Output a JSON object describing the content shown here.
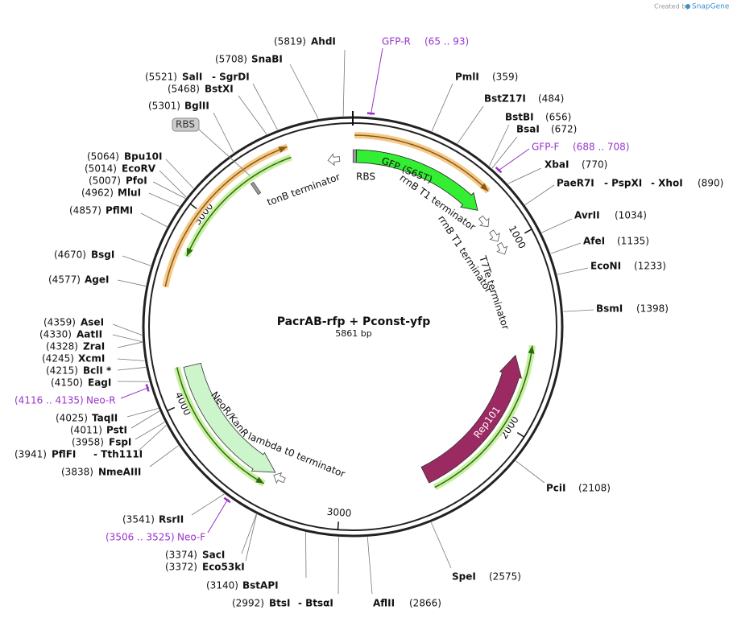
{
  "header": {
    "credit": "Created by",
    "brand": "SnapGene"
  },
  "map": {
    "name": "PacrAB-rfp + Pconst-yfp",
    "length": "5861 bp",
    "ticks": [
      "1000",
      "2000",
      "3000",
      "4000",
      "5000"
    ]
  },
  "sites": [
    {
      "names": [
        "AhdI"
      ],
      "position": "(5819)"
    },
    {
      "names": [
        "SnaBI"
      ],
      "position": "(5708)"
    },
    {
      "names": [
        "PmlI"
      ],
      "position": "(359)"
    },
    {
      "names": [
        "SalI",
        "- SgrDI"
      ],
      "position": "(5521)"
    },
    {
      "names": [
        "BstXI"
      ],
      "position": "(5468)"
    },
    {
      "names": [
        "BstZ17I"
      ],
      "position": "(484)"
    },
    {
      "names": [
        "BglII"
      ],
      "position": "(5301)"
    },
    {
      "names": [
        "BstBI"
      ],
      "position": "(656)"
    },
    {
      "names": [
        "BsaI"
      ],
      "position": "(672)"
    },
    {
      "names": [
        "XbaI"
      ],
      "position": "(770)"
    },
    {
      "names": [
        "PaeR7I",
        "- PspXI",
        "- XhoI"
      ],
      "position": "(890)"
    },
    {
      "names": [
        "AvrII"
      ],
      "position": "(1034)"
    },
    {
      "names": [
        "AfeI"
      ],
      "position": "(1135)"
    },
    {
      "names": [
        "EcoNI"
      ],
      "position": "(1233)"
    },
    {
      "names": [
        "BsmI"
      ],
      "position": "(1398)"
    },
    {
      "names": [
        "PciI"
      ],
      "position": "(2108)"
    },
    {
      "names": [
        "SpeI"
      ],
      "position": "(2575)"
    },
    {
      "names": [
        "AflII"
      ],
      "position": "(2866)"
    },
    {
      "names": [
        "BtsI",
        "- BtsαI"
      ],
      "position": "(2992)"
    },
    {
      "names": [
        "BstAPI"
      ],
      "position": "(3140)"
    },
    {
      "names": [
        "SacI"
      ],
      "position": "(3374)"
    },
    {
      "names": [
        "Eco53kI"
      ],
      "position": "(3372)"
    },
    {
      "names": [
        "RsrII"
      ],
      "position": "(3541)"
    },
    {
      "names": [
        "NmeAIII"
      ],
      "position": "(3838)"
    },
    {
      "names": [
        "PflFI",
        "- Tth111I"
      ],
      "position": "(3941)"
    },
    {
      "names": [
        "FspI"
      ],
      "position": "(3958)"
    },
    {
      "names": [
        "PstI"
      ],
      "position": "(4011)"
    },
    {
      "names": [
        "TaqII"
      ],
      "position": "(4025)"
    },
    {
      "names": [
        "EagI"
      ],
      "position": "(4150)"
    },
    {
      "names": [
        "BclI *"
      ],
      "position": "(4215)"
    },
    {
      "names": [
        "XcmI"
      ],
      "position": "(4245)"
    },
    {
      "names": [
        "ZraI"
      ],
      "position": "(4328)"
    },
    {
      "names": [
        "AatII"
      ],
      "position": "(4330)"
    },
    {
      "names": [
        "AseI"
      ],
      "position": "(4359)"
    },
    {
      "names": [
        "AgeI"
      ],
      "position": "(4577)"
    },
    {
      "names": [
        "BsgI"
      ],
      "position": "(4670)"
    },
    {
      "names": [
        "PflMI"
      ],
      "position": "(4857)"
    },
    {
      "names": [
        "MluI"
      ],
      "position": "(4962)"
    },
    {
      "names": [
        "PfoI"
      ],
      "position": "(5007)"
    },
    {
      "names": [
        "EcoRV"
      ],
      "position": "(5014)"
    },
    {
      "names": [
        "Bpu10I"
      ],
      "position": "(5064)"
    }
  ],
  "primers": [
    {
      "name": "GFP-R",
      "position": "(65 .. 93)"
    },
    {
      "name": "GFP-F",
      "position": "(688 .. 708)"
    },
    {
      "name": "Neo-R",
      "position": "(4116 .. 4135)"
    },
    {
      "name": "Neo-F",
      "position": "(3506 .. 3525)"
    }
  ],
  "features": [
    {
      "label": "GFP (S65T)"
    },
    {
      "label": "RBS"
    },
    {
      "label": "rrnB T1 terminator"
    },
    {
      "label": "rrnB T1 terminator"
    },
    {
      "label": "T7Te terminator"
    },
    {
      "label": "tonB terminator"
    },
    {
      "label": "NeoR/KanR"
    },
    {
      "label": "lambda t0 terminator"
    },
    {
      "label": "Rep101"
    },
    {
      "label": "RBS"
    }
  ]
}
